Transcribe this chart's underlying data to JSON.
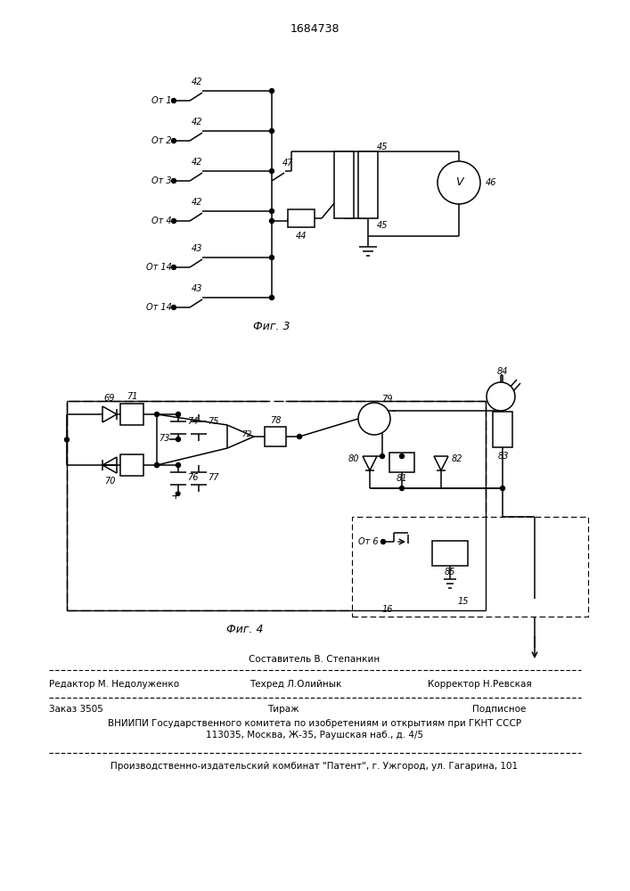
{
  "title": "1684738",
  "fig3_label": "Фиг. 3",
  "fig4_label": "Фиг. 4",
  "footer_line1": "Составитель В. Степанкин",
  "footer_line2a": "Редактор М. Недолуженко",
  "footer_line2b": "Техред Л.Олийнык",
  "footer_line2c": "Корректор Н.Ревская",
  "footer_zakaz": "Заказ 3505",
  "footer_tirazh": "Тираж",
  "footer_podp": "Подписное",
  "footer_vniipи": "ВНИИПИ Государственного комитета по изобретениям и открытиям при ГКНТ СССР",
  "footer_addr": "113035, Москва, Ж-35, Раушская наб., д. 4/5",
  "footer_prod": "Производственно-издательский комбинат \"Патент\", г. Ужгород, ул. Гагарина, 101"
}
